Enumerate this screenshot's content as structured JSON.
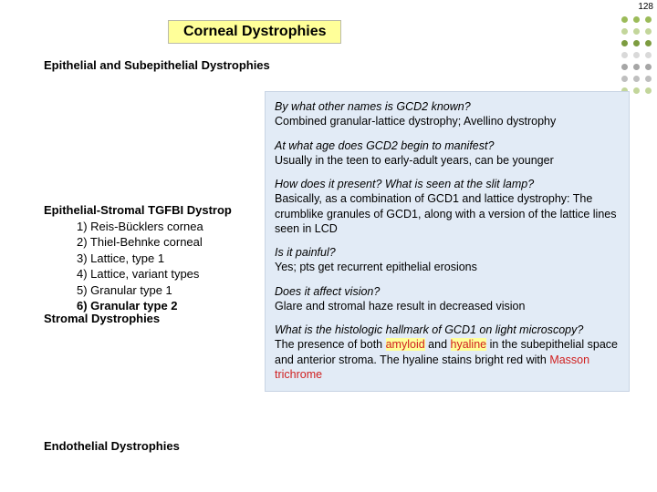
{
  "pageNumber": "128",
  "title": "Corneal Dystrophies",
  "dotColors": [
    [
      "#9bbb59",
      "#9bbb59",
      "#9bbb59"
    ],
    [
      "#c3d69b",
      "#c3d69b",
      "#c3d69b"
    ],
    [
      "#7d9c40",
      "#7d9c40",
      "#7d9c40"
    ],
    [
      "#d9d9d9",
      "#d9d9d9",
      "#d9d9d9"
    ],
    [
      "#a6a6a6",
      "#a6a6a6",
      "#a6a6a6"
    ],
    [
      "#bfbfbf",
      "#bfbfbf",
      "#bfbfbf"
    ],
    [
      "#c3d69b",
      "#c3d69b",
      "#c3d69b"
    ]
  ],
  "sections": {
    "epithelial": "Epithelial and Subepithelial Dystrophies",
    "stromal": "Stromal Dystrophies",
    "endothelial": "Endothelial Dystrophies"
  },
  "list": {
    "title": "Epithelial-Stromal TGFBI Dystrop",
    "items": [
      "1) Reis-Bücklers cornea",
      "2) Thiel-Behnke corneal",
      "3) Lattice, type 1",
      "4) Lattice, variant types",
      "5) Granular type 1",
      "6) Granular type 2"
    ],
    "boldIndex": 5
  },
  "qa": [
    {
      "q": "By what other names is GCD2 known?",
      "a": "Combined granular-lattice dystrophy; Avellino dystrophy"
    },
    {
      "q": "At what age does GCD2 begin to manifest?",
      "a": "Usually in the teen to early-adult years, can be younger"
    },
    {
      "q": "How does it present? What is seen at the slit lamp?",
      "a": "Basically, as a combination of GCD1 and lattice dystrophy: The crumblike granules of GCD1, along with a version of the lattice lines seen in LCD"
    },
    {
      "q": "Is it painful?",
      "a": "Yes; pts get recurrent epithelial erosions"
    },
    {
      "q": "Does it affect vision?",
      "a": "Glare and stromal haze result in decreased vision"
    },
    {
      "q": "What is the histologic hallmark of GCD1 on light microscopy?",
      "aPre": "The presence of both ",
      "amyloid": "amyloid",
      "mid1": " and ",
      "hyaline": "hyaline",
      "mid2": " in the subepithelial space and anterior stroma. The hyaline stains bright red with ",
      "masson": "Masson trichrome"
    }
  ]
}
